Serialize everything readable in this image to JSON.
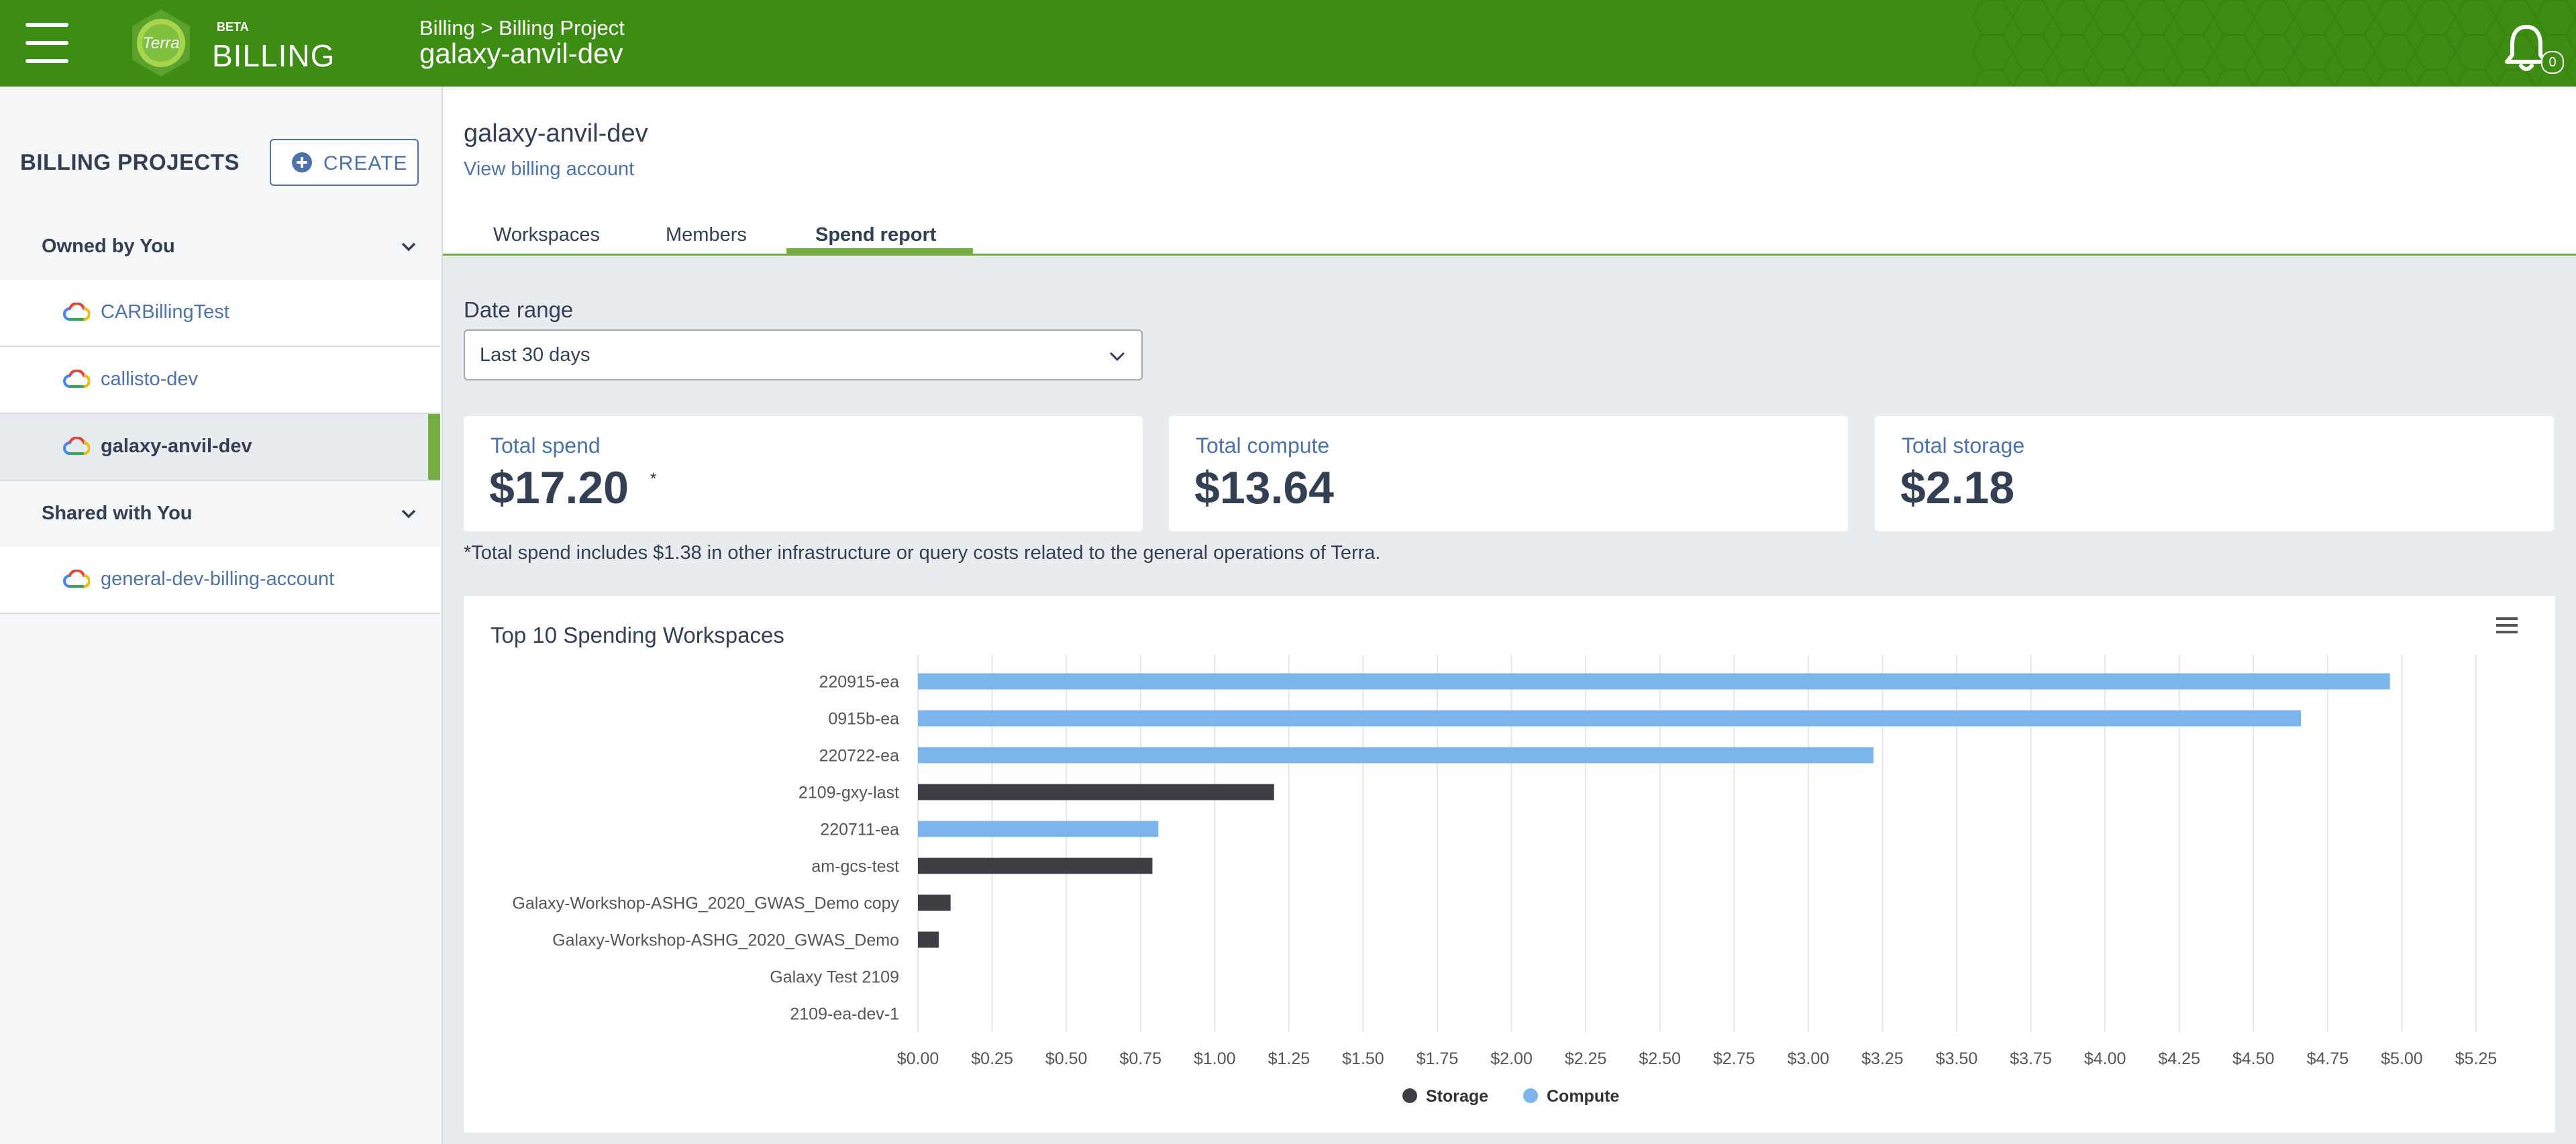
{
  "header": {
    "app_beta": "BETA",
    "app_name": "BILLING",
    "logo_text": "Terra",
    "breadcrumb_root": "Billing",
    "breadcrumb_sep": ">",
    "breadcrumb_section": "Billing Project",
    "title": "galaxy-anvil-dev",
    "notification_count": "0",
    "brand_color": "#3d8d14"
  },
  "sidebar": {
    "title": "BILLING PROJECTS",
    "create_label": "CREATE",
    "owned_header": "Owned by You",
    "owned_projects": [
      {
        "name": "CARBillingTest",
        "active": false
      },
      {
        "name": "callisto-dev",
        "active": false
      },
      {
        "name": "galaxy-anvil-dev",
        "active": true
      }
    ],
    "shared_header": "Shared with You",
    "shared_projects": [
      {
        "name": "general-dev-billing-account",
        "active": false
      }
    ]
  },
  "main": {
    "project_title": "galaxy-anvil-dev",
    "view_billing_link": "View billing account",
    "tabs": [
      {
        "label": "Workspaces",
        "active": false
      },
      {
        "label": "Members",
        "active": false
      },
      {
        "label": "Spend report",
        "active": true
      }
    ],
    "date_range_label": "Date range",
    "date_range_value": "Last 30 days",
    "cards": [
      {
        "label": "Total spend",
        "value": "$17.20",
        "note_mark": "*"
      },
      {
        "label": "Total compute",
        "value": "$13.64"
      },
      {
        "label": "Total storage",
        "value": "$2.18"
      }
    ],
    "footnote": "*Total spend includes $1.38 in other infrastructure or query costs related to the general operations of Terra."
  },
  "chart_data": {
    "type": "bar",
    "orientation": "horizontal",
    "stacked": true,
    "title": "Top 10 Spending Workspaces",
    "categories": [
      "220915-ea",
      "0915b-ea",
      "220722-ea",
      "2109-gxy-last",
      "220711-ea",
      "am-gcs-test",
      "Galaxy-Workshop-ASHG_2020_GWAS_Demo copy",
      "Galaxy-Workshop-ASHG_2020_GWAS_Demo",
      "Galaxy Test 2109",
      "2109-ea-dev-1"
    ],
    "series": [
      {
        "name": "Storage",
        "color": "#3e3e44",
        "values": [
          0,
          0,
          0,
          1.2,
          0,
          0.79,
          0.11,
          0.07,
          0,
          0
        ]
      },
      {
        "name": "Compute",
        "color": "#7cb5ec",
        "values": [
          4.96,
          4.66,
          3.22,
          0,
          0.81,
          0,
          0,
          0,
          0,
          0
        ]
      }
    ],
    "xlim": [
      0,
      5.25
    ],
    "x_ticks": [
      "$0.00",
      "$0.25",
      "$0.50",
      "$0.75",
      "$1.00",
      "$1.25",
      "$1.50",
      "$1.75",
      "$2.00",
      "$2.25",
      "$2.50",
      "$2.75",
      "$3.00",
      "$3.25",
      "$3.50",
      "$3.75",
      "$4.00",
      "$4.25",
      "$4.50",
      "$4.75",
      "$5.00",
      "$5.25"
    ],
    "grid": true,
    "legend_position": "bottom-center"
  }
}
